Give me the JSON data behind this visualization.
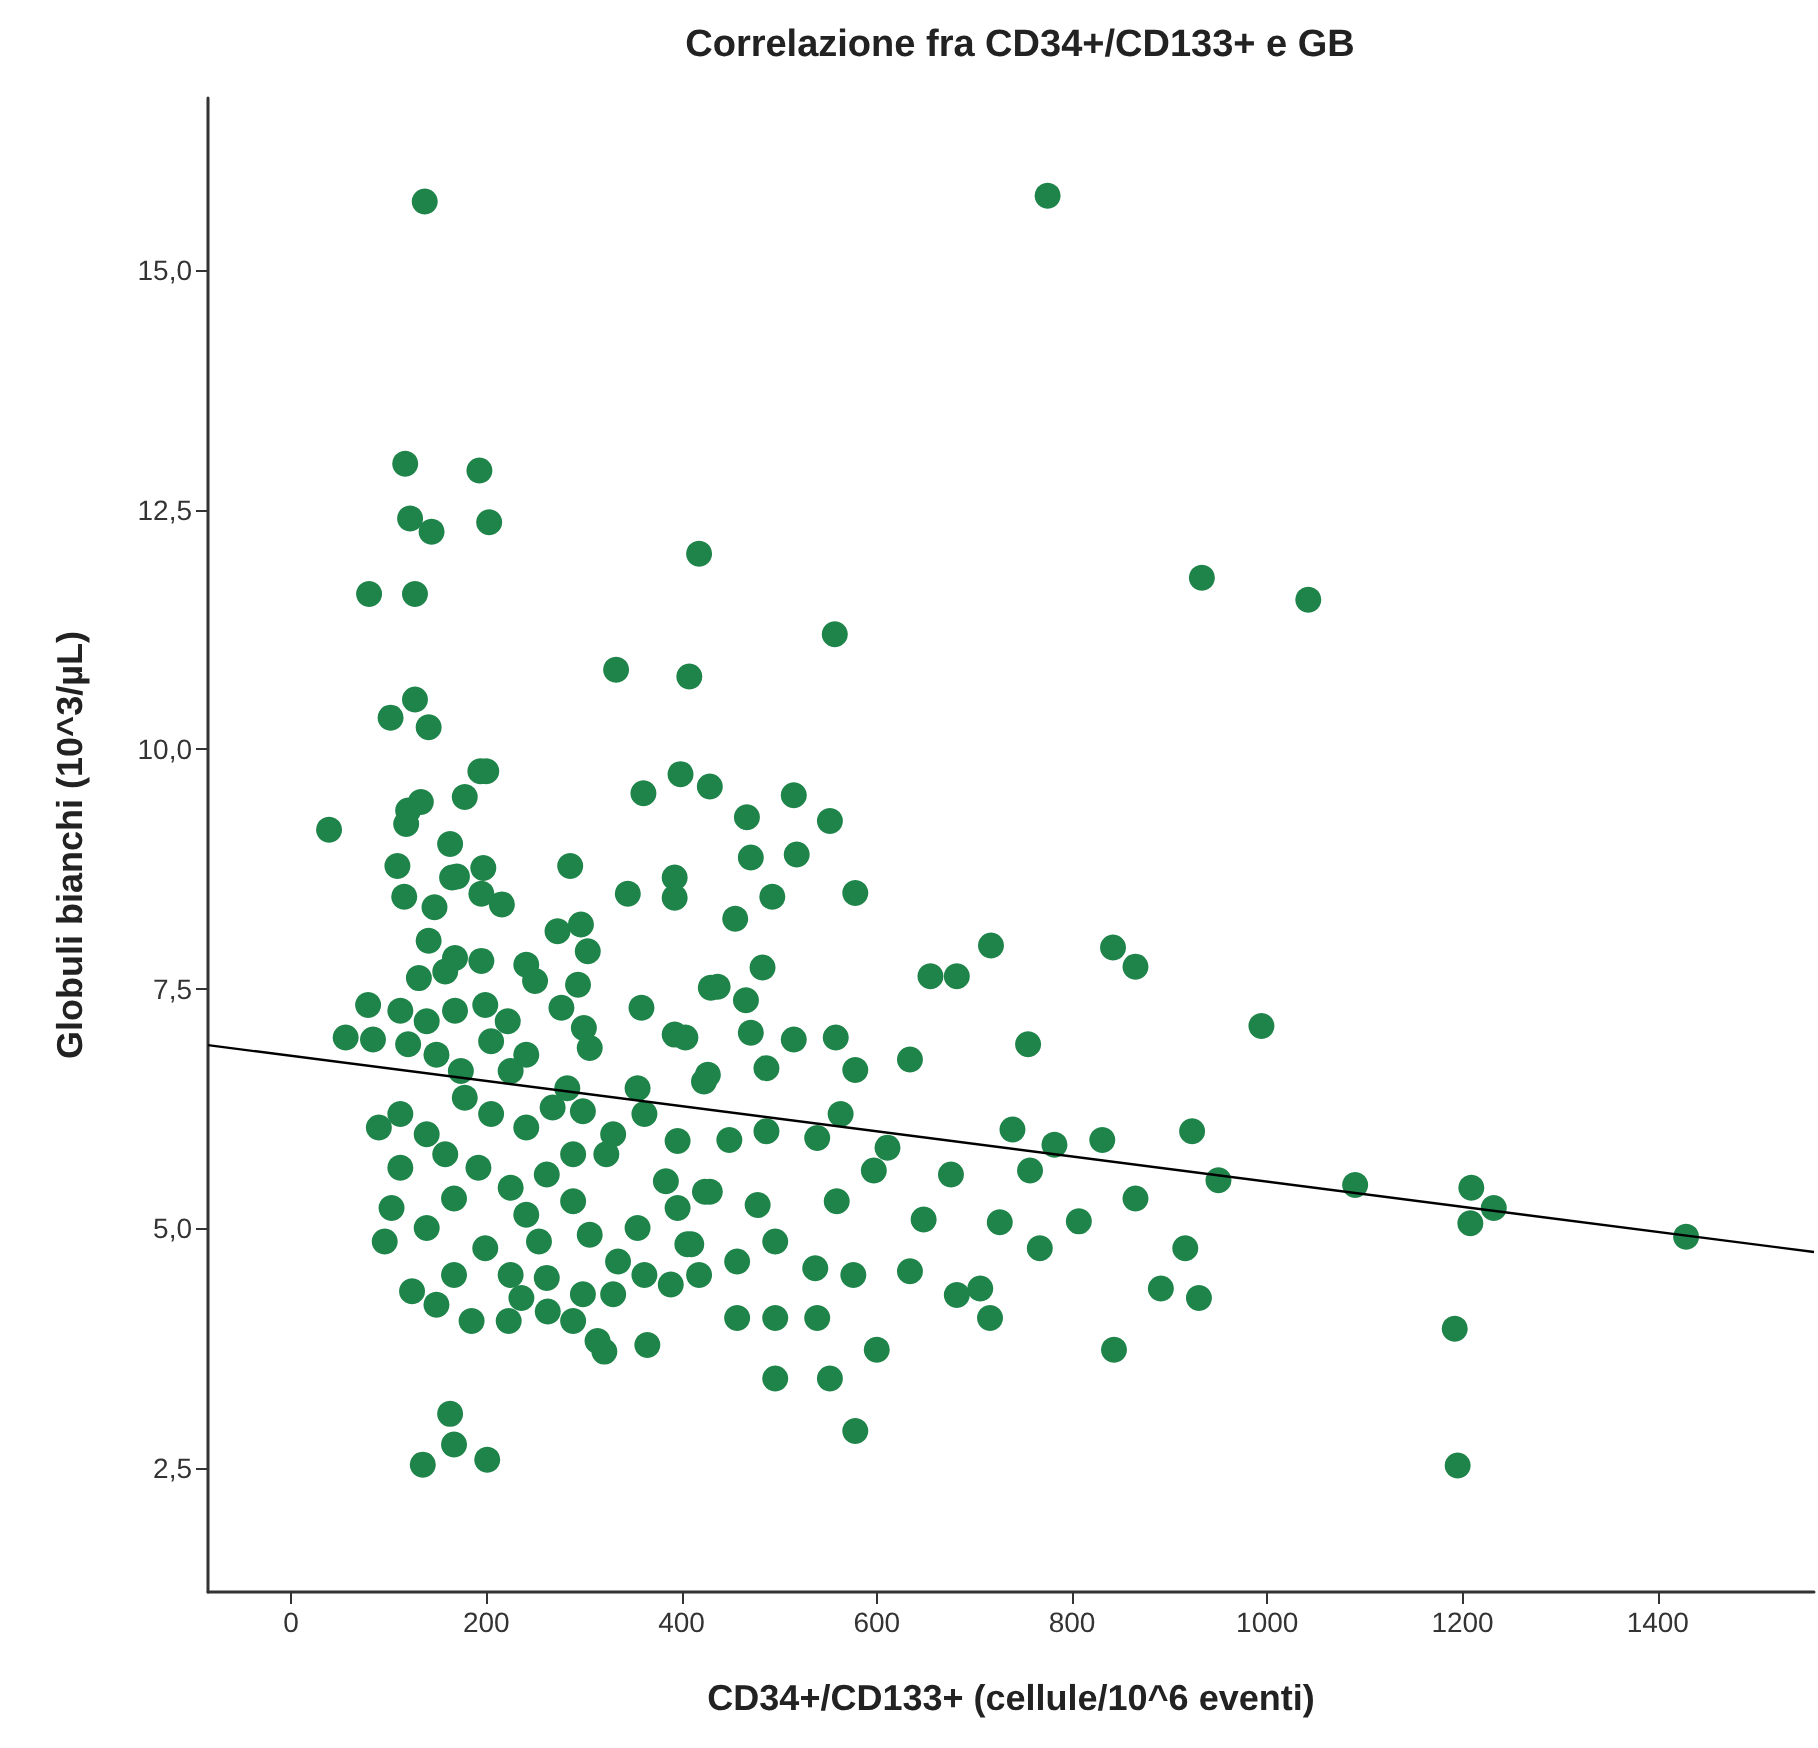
{
  "chart_data": {
    "type": "scatter",
    "title": "Correlazione fra CD34+/CD133+ e GB",
    "xlabel": "CD34+/CD133+ (cellule/10^6 eventi)",
    "ylabel": "Globuli bianchi (10^3/µL)",
    "xlim": [
      -85,
      1560
    ],
    "xticks": [
      0,
      200,
      400,
      600,
      800,
      1000,
      1200,
      1400
    ],
    "ylim": [
      1.2,
      16.8
    ],
    "yticks": [
      {
        "value": 2.5,
        "label": "2,5"
      },
      {
        "value": 5,
        "label": "5,0"
      },
      {
        "value": 7.5,
        "label": "7,5"
      },
      {
        "value": 10,
        "label": "10,0"
      },
      {
        "value": 12.5,
        "label": "12,5"
      },
      {
        "value": 15,
        "label": "15,0"
      }
    ],
    "grid": false,
    "series": [
      {
        "marker": "circle",
        "color": "#1e8449",
        "x": [
          137,
          775,
          117,
          193,
          122,
          144,
          203,
          418,
          80,
          127,
          333,
          408,
          127,
          102,
          141,
          194,
          200,
          361,
          399,
          429,
          133,
          120,
          178,
          39,
          118,
          163,
          286,
          109,
          170,
          197,
          393,
          165,
          116,
          147,
          195,
          216,
          345,
          393,
          141,
          168,
          195,
          273,
          297,
          304,
          241,
          131,
          158,
          250,
          294,
          79,
          112,
          139,
          168,
          199,
          222,
          277,
          300,
          359,
          393,
          430,
          56,
          84,
          120,
          149,
          205,
          241,
          306,
          174,
          225,
          283,
          355,
          423,
          90,
          112,
          139,
          178,
          205,
          241,
          268,
          299,
          330,
          362,
          396,
          112,
          158,
          192,
          225,
          262,
          289,
          323,
          384,
          396,
          429,
          103,
          96,
          139,
          167,
          199,
          241,
          254,
          289,
          306,
          355,
          335,
          362,
          410,
          124,
          149,
          167,
          225,
          236,
          262,
          299,
          330,
          389,
          418,
          185,
          223,
          263,
          289,
          314,
          321,
          365,
          163,
          167,
          135,
          201,
          557,
          515,
          467,
          552,
          471,
          518,
          493,
          578,
          455,
          717,
          842,
          865,
          655,
          682,
          483,
          437,
          466,
          994,
          404,
          471,
          515,
          558,
          755,
          634,
          487,
          578,
          427,
          563,
          739,
          782,
          831,
          923,
          950,
          449,
          487,
          539,
          611,
          597,
          676,
          757,
          865,
          424,
          478,
          559,
          648,
          726,
          807,
          406,
          496,
          767,
          916,
          457,
          537,
          634,
          576,
          682,
          706,
          891,
          930,
          716,
          457,
          496,
          539,
          600,
          843,
          496,
          552,
          578,
          933,
          1042,
          1090,
          1209,
          1208,
          1232,
          1429,
          1192,
          1195
        ],
        "values": [
          15.72,
          15.78,
          12.98,
          12.91,
          12.41,
          12.27,
          12.37,
          12.04,
          11.62,
          11.62,
          10.83,
          10.76,
          10.52,
          10.33,
          10.23,
          9.77,
          9.77,
          9.54,
          9.74,
          9.61,
          9.45,
          9.36,
          9.5,
          9.16,
          9.22,
          9.01,
          8.78,
          8.78,
          8.67,
          8.76,
          8.66,
          8.66,
          8.46,
          8.35,
          8.49,
          8.38,
          8.49,
          8.45,
          8.0,
          7.82,
          7.79,
          8.1,
          8.17,
          7.89,
          7.75,
          7.61,
          7.68,
          7.58,
          7.54,
          7.33,
          7.27,
          7.16,
          7.27,
          7.33,
          7.16,
          7.3,
          7.09,
          7.3,
          7.02,
          7.51,
          6.99,
          6.97,
          6.92,
          6.81,
          6.95,
          6.81,
          6.88,
          6.64,
          6.64,
          6.46,
          6.46,
          6.53,
          6.05,
          6.19,
          5.98,
          6.36,
          6.19,
          6.05,
          6.26,
          6.22,
          5.98,
          6.19,
          5.91,
          5.63,
          5.77,
          5.63,
          5.42,
          5.56,
          5.77,
          5.77,
          5.49,
          5.21,
          5.38,
          5.21,
          4.86,
          5.0,
          5.31,
          4.79,
          5.14,
          4.86,
          5.28,
          4.93,
          5.0,
          4.65,
          4.51,
          4.83,
          4.34,
          4.2,
          4.51,
          4.51,
          4.27,
          4.48,
          4.31,
          4.31,
          4.41,
          4.51,
          4.03,
          4.03,
          4.13,
          4.03,
          3.82,
          3.71,
          3.78,
          3.06,
          2.74,
          2.53,
          2.58,
          11.2,
          9.52,
          9.29,
          9.25,
          8.87,
          8.9,
          8.46,
          8.5,
          8.23,
          7.95,
          7.93,
          7.73,
          7.63,
          7.63,
          7.72,
          7.52,
          7.38,
          7.11,
          6.99,
          7.04,
          6.97,
          6.99,
          6.92,
          6.76,
          6.67,
          6.65,
          6.6,
          6.19,
          6.03,
          5.87,
          5.92,
          6.01,
          5.5,
          5.92,
          6.01,
          5.94,
          5.84,
          5.6,
          5.56,
          5.6,
          5.31,
          5.38,
          5.24,
          5.28,
          5.09,
          5.06,
          5.07,
          4.83,
          4.86,
          4.79,
          4.79,
          4.65,
          4.58,
          4.55,
          4.51,
          4.3,
          4.37,
          4.37,
          4.27,
          4.06,
          4.06,
          4.06,
          4.06,
          3.73,
          3.73,
          3.43,
          3.43,
          2.88,
          11.79,
          11.56,
          5.45,
          5.42,
          5.05,
          5.21,
          4.91,
          3.95,
          2.52
        ]
      },
      {
        "type": "line",
        "color": "#000000",
        "x": [
          -85,
          1560
        ],
        "values": [
          6.91,
          4.75
        ]
      }
    ]
  }
}
